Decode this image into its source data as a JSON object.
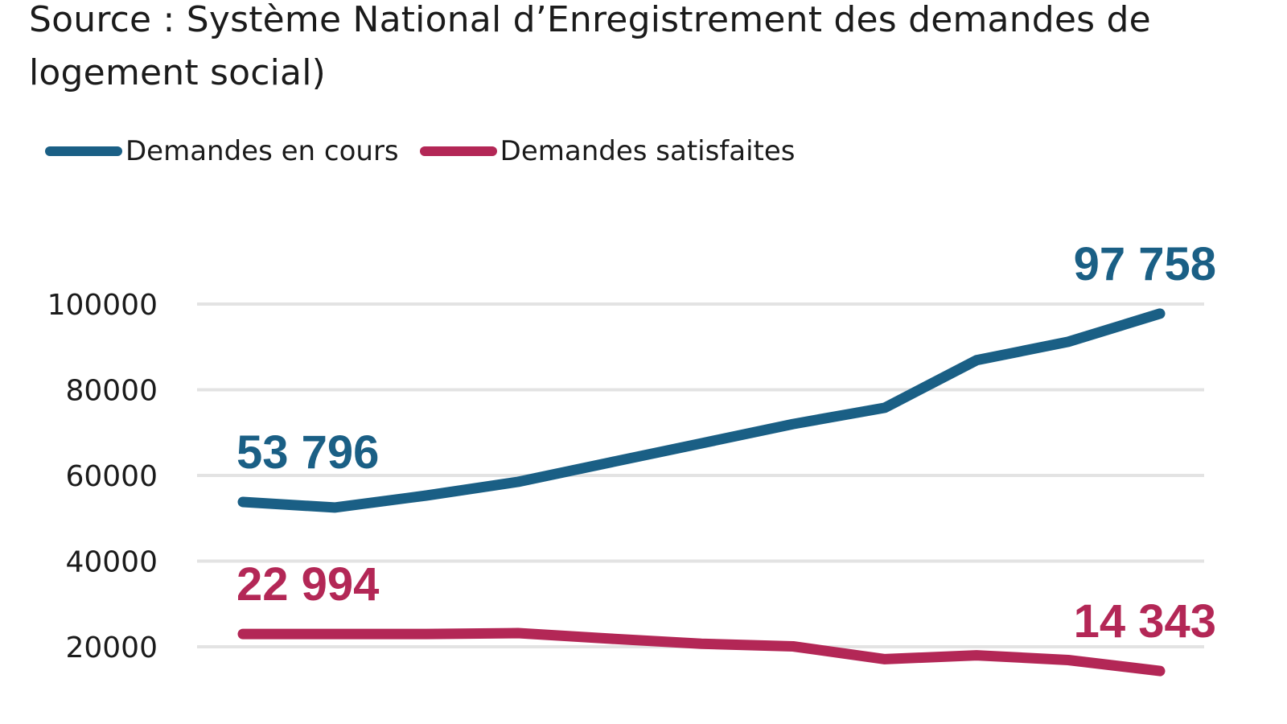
{
  "chart_data": {
    "type": "line",
    "title": "Source : Système National d’Enregistrement des demandes de logement social)",
    "xlabel": "",
    "ylabel": "",
    "ylim": [
      10000,
      105000
    ],
    "yticks": [
      20000,
      40000,
      60000,
      80000,
      100000
    ],
    "ytick_labels": [
      "20000",
      "40000",
      "60000",
      "80000",
      "100000"
    ],
    "grid": true,
    "legend_position": "top-left",
    "x": [
      1,
      2,
      3,
      4,
      5,
      6,
      7,
      8,
      9,
      10,
      11
    ],
    "series": [
      {
        "name": "Demandes en cours",
        "color": "#1a5f85",
        "values": [
          53796,
          52500,
          55300,
          58500,
          63000,
          67500,
          72000,
          75800,
          86900,
          91200,
          97758
        ],
        "annotations": [
          {
            "index": 0,
            "text": "53 796"
          },
          {
            "index": 10,
            "text": "97 758"
          }
        ]
      },
      {
        "name": "Demandes satisfaites",
        "color": "#b32756",
        "values": [
          22994,
          22994,
          22994,
          23200,
          21900,
          20700,
          20100,
          17100,
          18000,
          16900,
          14343
        ],
        "annotations": [
          {
            "index": 0,
            "text": "22 994"
          },
          {
            "index": 10,
            "text": "14 343"
          }
        ]
      }
    ]
  },
  "gridline_color": "#e3e3e3"
}
